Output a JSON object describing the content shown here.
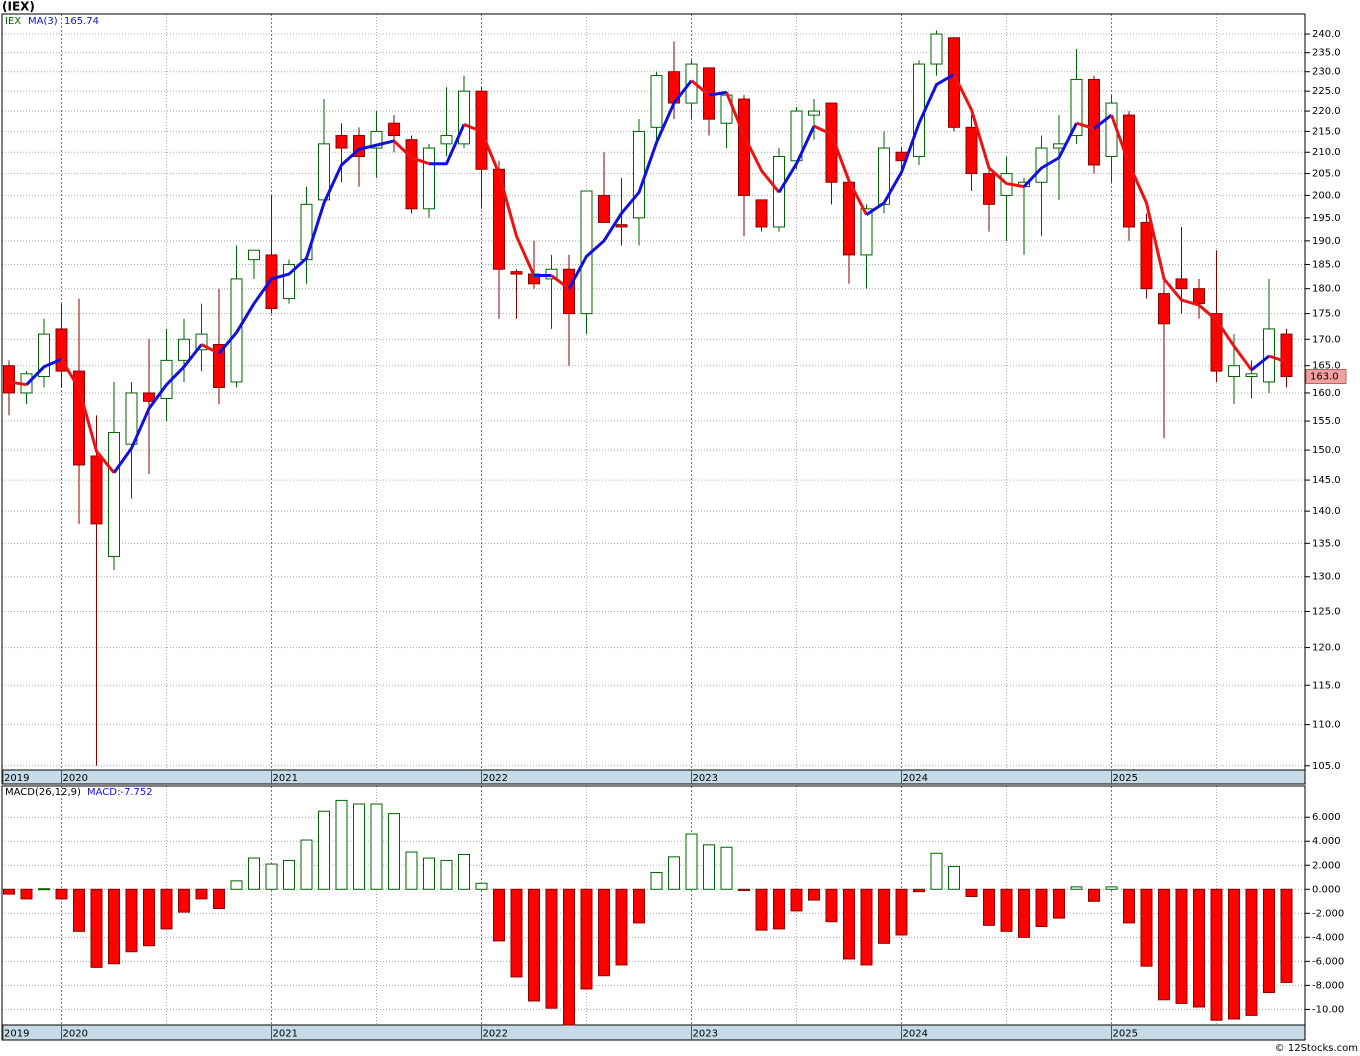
{
  "chart_data": [
    {
      "type": "candlestick",
      "title": "(IEX)",
      "symbol": "IEX",
      "log_scale": true,
      "grid": true,
      "categories": [
        "2019",
        null,
        null,
        "2020",
        null,
        null,
        null,
        null,
        null,
        null,
        null,
        null,
        null,
        null,
        null,
        "2021",
        null,
        null,
        null,
        null,
        null,
        null,
        null,
        null,
        null,
        null,
        null,
        "2022",
        null,
        null,
        null,
        null,
        null,
        null,
        null,
        null,
        null,
        null,
        null,
        "2023",
        null,
        null,
        null,
        null,
        null,
        null,
        null,
        null,
        null,
        null,
        null,
        "2024",
        null,
        null,
        null,
        null,
        null,
        null,
        null,
        null,
        null,
        null,
        null,
        "2025",
        null,
        null,
        null,
        null,
        null,
        null,
        null,
        null,
        null,
        null
      ],
      "open": [
        165,
        160,
        163,
        172,
        164,
        149,
        133,
        151,
        160,
        159,
        166,
        168,
        169,
        162,
        186,
        187,
        178,
        186,
        199,
        214,
        214,
        211,
        217,
        213,
        197,
        212,
        212,
        225,
        206,
        183.5,
        183,
        182,
        184,
        175,
        200,
        193.5,
        195,
        216,
        230,
        222,
        231,
        217,
        223,
        199,
        193,
        208,
        219,
        222,
        203,
        187,
        198,
        210,
        209,
        232,
        239,
        216,
        205,
        200,
        202,
        203,
        211,
        214,
        228,
        209,
        219,
        194,
        179,
        182,
        180,
        175,
        163,
        163,
        162,
        171
      ],
      "high": [
        166,
        164,
        174,
        177,
        178,
        156,
        162,
        162,
        170,
        172,
        174,
        177,
        180,
        189,
        188,
        200,
        186,
        202,
        223,
        217,
        216,
        220,
        219,
        214,
        212,
        226,
        229,
        226,
        208,
        184,
        190,
        187,
        187,
        201,
        210,
        204,
        218,
        230,
        238,
        233,
        231,
        225,
        224,
        199,
        211,
        221,
        223,
        222,
        203,
        198,
        215,
        211,
        233,
        241,
        239,
        219,
        206,
        209,
        204,
        214,
        219,
        236,
        229,
        224,
        220,
        196,
        182,
        193,
        182,
        188,
        171,
        166,
        182,
        172
      ],
      "low": [
        156,
        158,
        161,
        161,
        138,
        105,
        131,
        142,
        146,
        155,
        162,
        164,
        158,
        161,
        182,
        175,
        177,
        181,
        198,
        203,
        202,
        204,
        210,
        196,
        195,
        209,
        211,
        197,
        174,
        174,
        180,
        172,
        165,
        171,
        194,
        189,
        189,
        212,
        218,
        218,
        214,
        211,
        191,
        192,
        192,
        206,
        213,
        198,
        181,
        180,
        196,
        205,
        207,
        229,
        215,
        201,
        192,
        190,
        187,
        191,
        199,
        212,
        205,
        203,
        190,
        178,
        152,
        175,
        174,
        162,
        158,
        159,
        160,
        161
      ],
      "close": [
        160,
        163.5,
        171,
        164,
        147.5,
        138,
        153,
        160,
        158.5,
        166,
        170,
        171,
        161,
        182,
        188,
        176,
        185,
        198,
        212,
        211,
        209,
        215,
        214,
        197,
        211,
        214,
        225,
        206,
        184,
        183,
        181,
        184,
        175,
        201,
        194,
        193,
        215,
        229,
        222,
        232,
        218,
        224,
        200,
        193,
        209,
        220,
        220,
        203,
        187,
        197,
        211,
        208,
        232,
        240,
        216,
        205,
        198,
        205,
        203,
        211,
        212,
        228,
        207,
        222,
        193,
        180,
        173,
        180,
        177,
        164,
        165,
        163.5,
        172,
        163
      ],
      "close_label": "163.0",
      "up_fill": "#ffffff",
      "up_edge": "#006400",
      "down_fill": "#ff0000",
      "down_edge": "#8b0000",
      "ma": {
        "name": "MA(3)",
        "up_color": "#1010e0",
        "down_color": "#ee1111",
        "values": [
          162,
          161.5,
          164.8,
          166.2,
          160.8,
          149.8,
          146.2,
          150.3,
          157.2,
          161.5,
          164.8,
          169,
          167.3,
          171.3,
          177,
          182,
          183,
          186.3,
          198.3,
          207,
          210.7,
          211.7,
          212.7,
          208.7,
          207.3,
          207.3,
          216.7,
          215,
          205,
          191,
          182.7,
          182.7,
          180,
          186.7,
          190,
          196,
          200.7,
          212.3,
          222,
          227.7,
          224,
          224.7,
          214,
          205.7,
          200.7,
          207.3,
          216.3,
          214.3,
          203.3,
          195.7,
          198.3,
          205.3,
          217,
          226.7,
          229.3,
          220.3,
          206.3,
          202.7,
          202,
          206.3,
          208.7,
          217,
          215.7,
          219,
          207.3,
          198.3,
          182,
          177.7,
          176.7,
          173.7,
          168.7,
          164.2,
          166.8,
          165.74
        ]
      },
      "ylim": [
        104.5,
        245.5
      ],
      "yticks": [
        {
          "value": 105,
          "label": "105.0"
        },
        {
          "value": 110,
          "label": "110.0"
        },
        {
          "value": 115,
          "label": "115.0"
        },
        {
          "value": 120,
          "label": "120.0"
        },
        {
          "value": 125,
          "label": "125.0"
        },
        {
          "value": 130,
          "label": "130.0"
        },
        {
          "value": 135,
          "label": "135.0"
        },
        {
          "value": 140,
          "label": "140.0"
        },
        {
          "value": 145,
          "label": "145.0"
        },
        {
          "value": 150,
          "label": "150.0"
        },
        {
          "value": 155,
          "label": "155.0"
        },
        {
          "value": 160,
          "label": "160.0"
        },
        {
          "value": 165,
          "label": "165.0"
        },
        {
          "value": 170,
          "label": "170.0"
        },
        {
          "value": 175,
          "label": "175.0"
        },
        {
          "value": 180,
          "label": "180.0"
        },
        {
          "value": 185,
          "label": "185.0"
        },
        {
          "value": 190,
          "label": "190.0"
        },
        {
          "value": 195,
          "label": "195.0"
        },
        {
          "value": 200,
          "label": "200.0"
        },
        {
          "value": 205,
          "label": "205.0"
        },
        {
          "value": 210,
          "label": "210.0"
        },
        {
          "value": 215,
          "label": "215.0"
        },
        {
          "value": 220,
          "label": "220.0"
        },
        {
          "value": 225,
          "label": "225.0"
        },
        {
          "value": 230,
          "label": "230.0"
        },
        {
          "value": 235,
          "label": "235.0"
        },
        {
          "value": 240,
          "label": "240.0"
        }
      ]
    },
    {
      "type": "bar",
      "title": "MACD(26,12,9)",
      "legend": "MACD:-7.752",
      "grid": true,
      "categories": [
        "2019",
        null,
        null,
        "2020",
        null,
        null,
        null,
        null,
        null,
        null,
        null,
        null,
        null,
        null,
        null,
        "2021",
        null,
        null,
        null,
        null,
        null,
        null,
        null,
        null,
        null,
        null,
        null,
        "2022",
        null,
        null,
        null,
        null,
        null,
        null,
        null,
        null,
        null,
        null,
        null,
        "2023",
        null,
        null,
        null,
        null,
        null,
        null,
        null,
        null,
        null,
        null,
        null,
        "2024",
        null,
        null,
        null,
        null,
        null,
        null,
        null,
        null,
        null,
        null,
        null,
        "2025",
        null,
        null,
        null,
        null,
        null,
        null,
        null,
        null,
        null,
        null
      ],
      "values": [
        -0.4,
        -0.8,
        0.05,
        -0.8,
        -3.5,
        -6.5,
        -6.2,
        -5.2,
        -4.7,
        -3.3,
        -1.9,
        -0.8,
        -1.6,
        0.7,
        2.6,
        2.1,
        2.4,
        4.1,
        6.5,
        7.4,
        7.1,
        7.1,
        6.3,
        3.1,
        2.6,
        2.4,
        2.9,
        0.5,
        -4.3,
        -7.3,
        -9.3,
        -9.9,
        -11.3,
        -8.3,
        -7.2,
        -6.3,
        -2.8,
        1.4,
        2.7,
        4.6,
        3.7,
        3.5,
        -0.1,
        -3.4,
        -3.3,
        -1.8,
        -0.9,
        -2.7,
        -5.8,
        -6.3,
        -4.5,
        -3.8,
        -0.2,
        3.0,
        1.9,
        -0.6,
        -3.0,
        -3.5,
        -4.0,
        -3.1,
        -2.4,
        0.2,
        -1.0,
        0.2,
        -2.8,
        -6.4,
        -9.2,
        -9.5,
        -9.8,
        -10.9,
        -10.8,
        -10.5,
        -8.6,
        -7.752
      ],
      "pos_fill": "#ffffff",
      "pos_edge": "#006400",
      "neg_fill": "#ff0000",
      "neg_edge": "#8b0000",
      "ylim": [
        -11.3,
        8.6
      ],
      "yticks": [
        {
          "value": 6,
          "label": "6.000"
        },
        {
          "value": 4,
          "label": "4.000"
        },
        {
          "value": 2,
          "label": "2.000"
        },
        {
          "value": 0,
          "label": "0.000"
        },
        {
          "value": -2,
          "label": "-2.000"
        },
        {
          "value": -4,
          "label": "-4.000"
        },
        {
          "value": -6,
          "label": "-6.000"
        },
        {
          "value": -8,
          "label": "-8.000"
        },
        {
          "value": -10,
          "label": "-10.00"
        }
      ]
    }
  ],
  "footer": "© 12Stocks.com"
}
